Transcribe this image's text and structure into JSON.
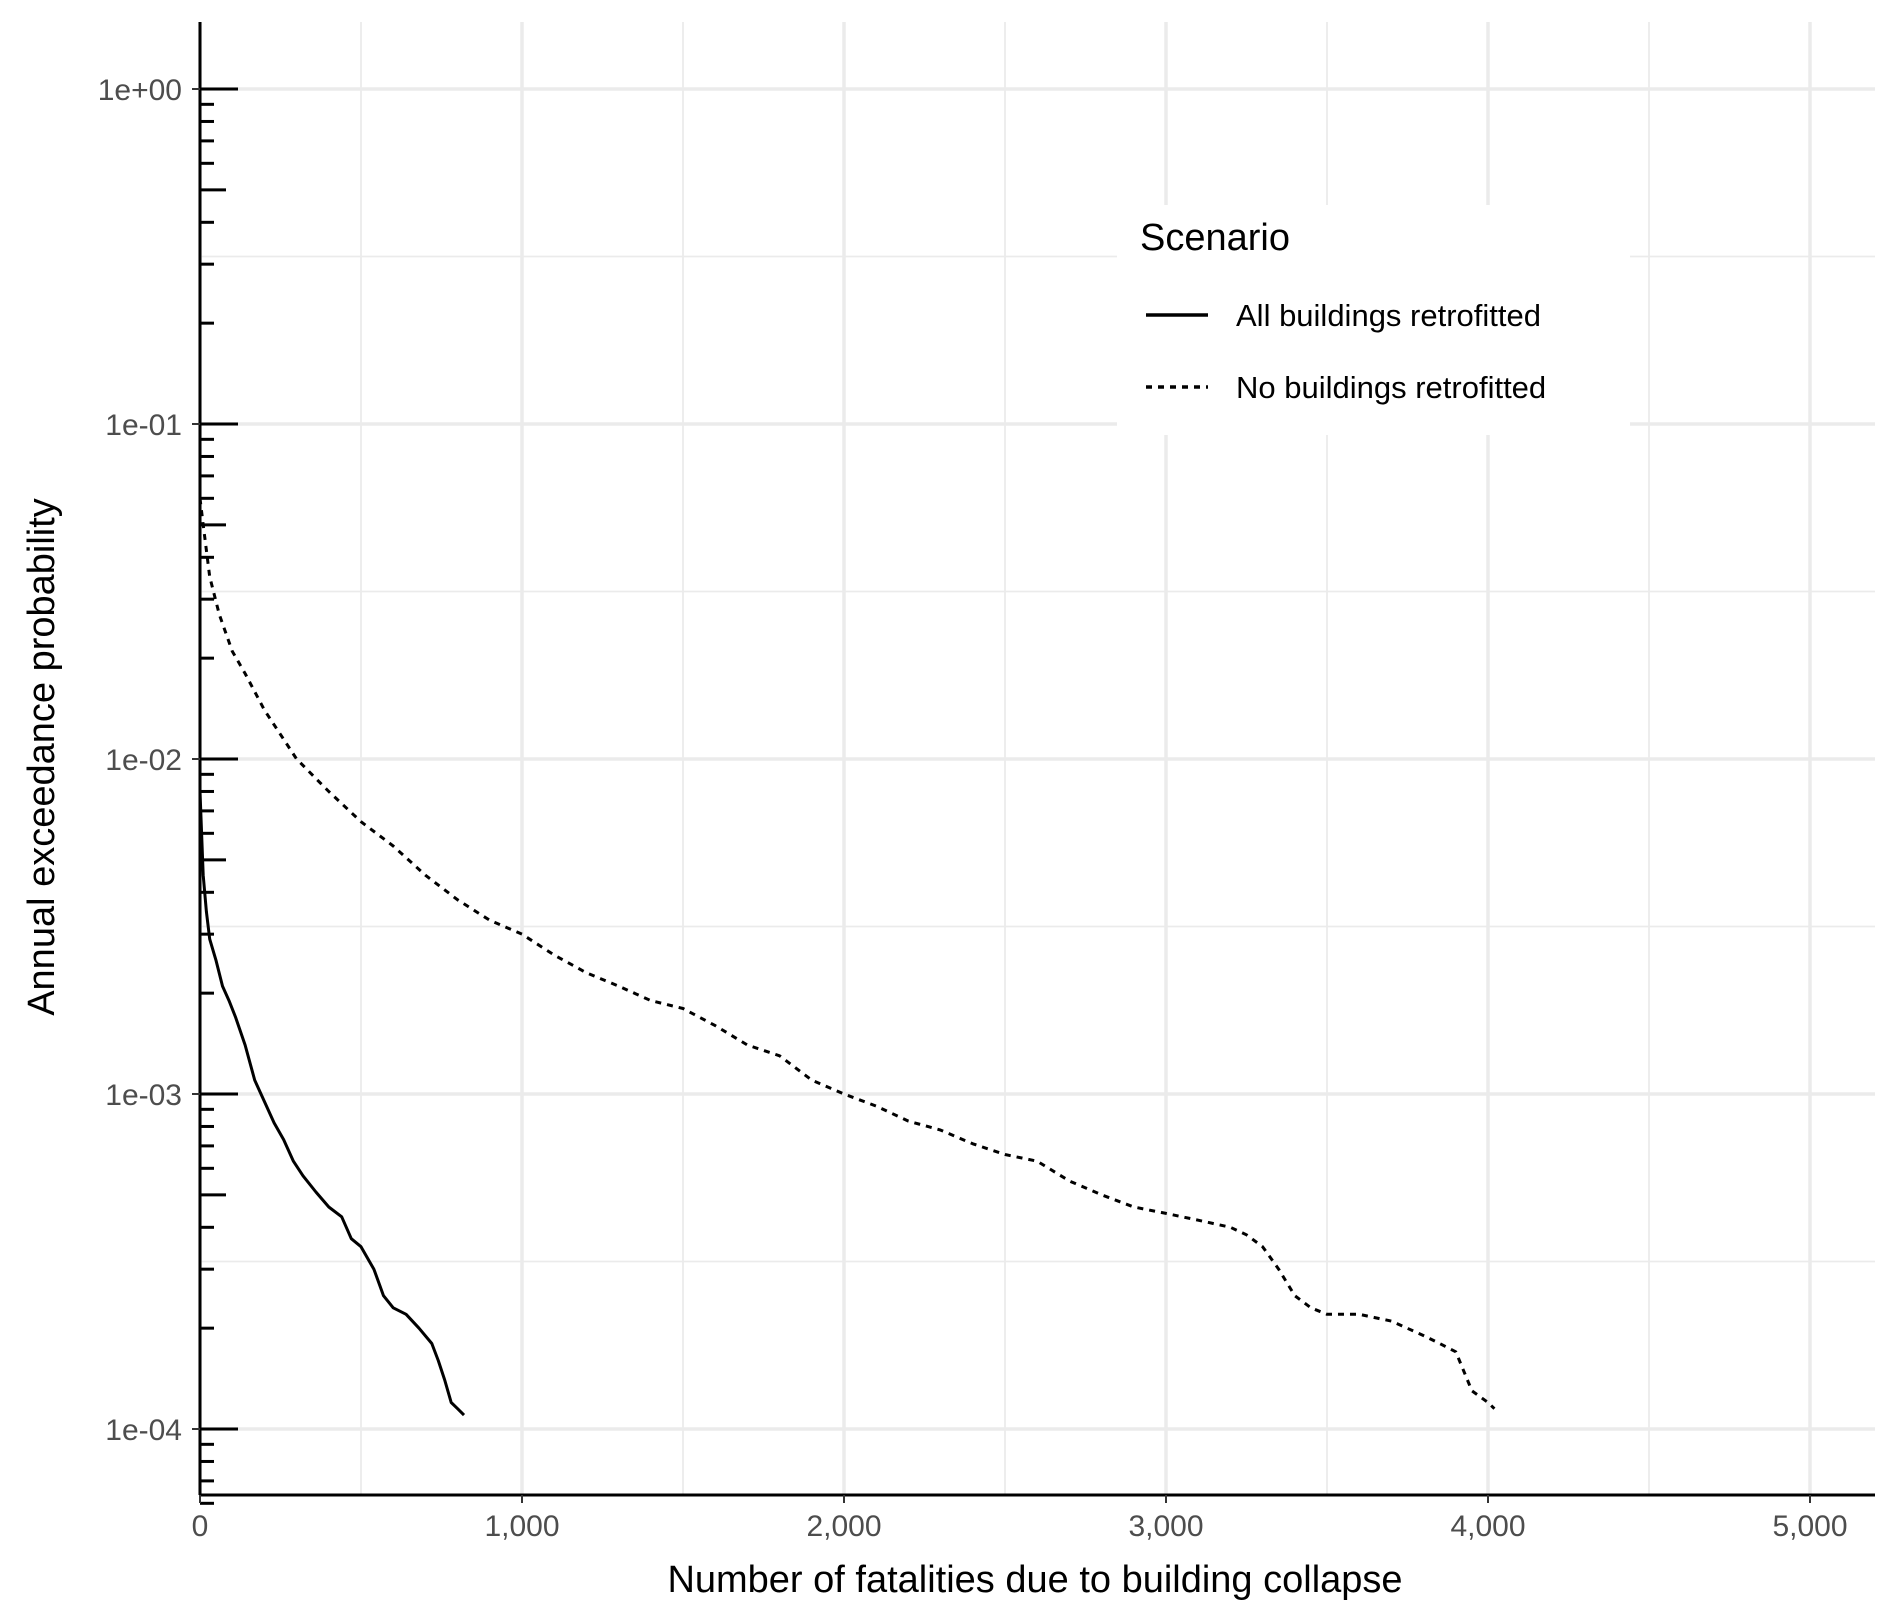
{
  "chart_data": {
    "type": "line",
    "title": "",
    "xlabel": "Number of fatalities due to building collapse",
    "ylabel": "Annual exceedance probability",
    "xlim": [
      0,
      5200
    ],
    "ylim": [
      6e-05,
      1.6
    ],
    "y_scale": "log",
    "grid": true,
    "x_ticks": [
      0,
      1000,
      2000,
      3000,
      4000,
      5000
    ],
    "x_tick_labels": [
      "0",
      "1,000",
      "2,000",
      "3,000",
      "4,000",
      "5,000"
    ],
    "y_ticks": [
      1,
      0.1,
      0.01,
      0.001,
      0.0001
    ],
    "y_tick_labels": [
      "1e+00",
      "1e-01",
      "1e-02",
      "1e-03",
      "1e-04"
    ],
    "legend": {
      "title": "Scenario",
      "position": "top-right"
    },
    "series": [
      {
        "name": "All buildings retrofitted",
        "line_style": "solid",
        "color": "#000000",
        "x": [
          0,
          5,
          10,
          20,
          30,
          50,
          70,
          90,
          110,
          140,
          170,
          200,
          230,
          260,
          290,
          320,
          360,
          400,
          440,
          470,
          500,
          540,
          570,
          600,
          640,
          680,
          720,
          740,
          760,
          780,
          800,
          820
        ],
        "y": [
          0.008,
          0.006,
          0.0045,
          0.0035,
          0.0029,
          0.0025,
          0.0021,
          0.0019,
          0.0017,
          0.0014,
          0.0011,
          0.00095,
          0.00082,
          0.00073,
          0.00063,
          0.00057,
          0.00051,
          0.00046,
          0.00043,
          0.00037,
          0.00035,
          0.0003,
          0.00025,
          0.00023,
          0.00022,
          0.0002,
          0.00018,
          0.00016,
          0.00014,
          0.00012,
          0.000115,
          0.00011
        ]
      },
      {
        "name": "No buildings retrofitted",
        "line_style": "dashed",
        "color": "#000000",
        "x": [
          0,
          10,
          30,
          60,
          100,
          140,
          200,
          300,
          400,
          500,
          600,
          700,
          800,
          900,
          1000,
          1100,
          1200,
          1300,
          1400,
          1500,
          1600,
          1700,
          1800,
          1900,
          2000,
          2100,
          2200,
          2300,
          2400,
          2500,
          2600,
          2700,
          2800,
          2900,
          3000,
          3100,
          3200,
          3250,
          3300,
          3350,
          3400,
          3450,
          3500,
          3600,
          3700,
          3800,
          3850,
          3900,
          3950,
          4000,
          4020
        ],
        "y": [
          0.06,
          0.05,
          0.035,
          0.027,
          0.021,
          0.018,
          0.014,
          0.01,
          0.008,
          0.0065,
          0.0055,
          0.0045,
          0.0038,
          0.0033,
          0.003,
          0.0026,
          0.0023,
          0.0021,
          0.0019,
          0.0018,
          0.0016,
          0.0014,
          0.0013,
          0.0011,
          0.001,
          0.00092,
          0.00083,
          0.00078,
          0.00071,
          0.00066,
          0.00063,
          0.00055,
          0.0005,
          0.00046,
          0.00044,
          0.00042,
          0.0004,
          0.00038,
          0.00035,
          0.0003,
          0.00025,
          0.00023,
          0.00022,
          0.00022,
          0.00021,
          0.00019,
          0.00018,
          0.00017,
          0.00013,
          0.00012,
          0.000115
        ]
      }
    ]
  }
}
